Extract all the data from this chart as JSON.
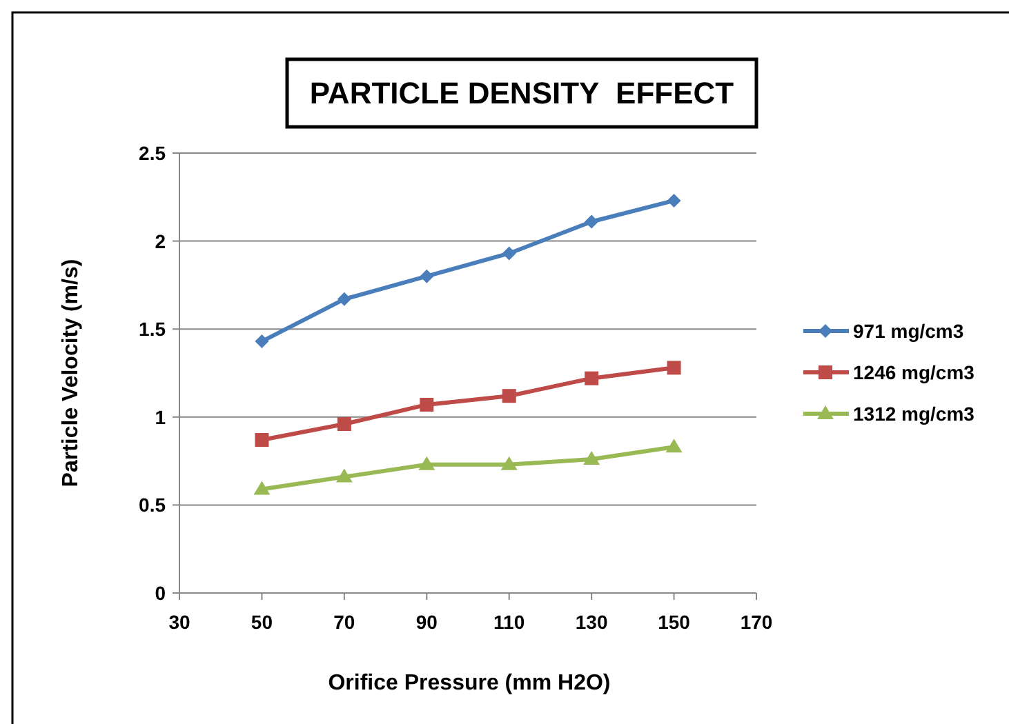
{
  "chart_data": {
    "type": "line",
    "title": "PARTICLE DENSITY  EFFECT",
    "xlabel": "Orifice Pressure (mm H2O)",
    "ylabel": "Particle Velocity (m/s)",
    "x": [
      50,
      70,
      90,
      110,
      130,
      150
    ],
    "series": [
      {
        "name": "971 mg/cm3",
        "color": "#4a7ebb",
        "marker": "diamond",
        "values": [
          1.43,
          1.67,
          1.8,
          1.93,
          2.11,
          2.23
        ]
      },
      {
        "name": "1246 mg/cm3",
        "color": "#be4b48",
        "marker": "square",
        "values": [
          0.87,
          0.96,
          1.07,
          1.12,
          1.22,
          1.28
        ]
      },
      {
        "name": "1312 mg/cm3",
        "color": "#98b954",
        "marker": "triangle",
        "values": [
          0.59,
          0.66,
          0.73,
          0.73,
          0.76,
          0.83
        ]
      }
    ],
    "xlim": [
      30,
      170
    ],
    "xticks": [
      30,
      50,
      70,
      90,
      110,
      130,
      150,
      170
    ],
    "ylim": [
      0,
      2.5
    ],
    "yticks": [
      0,
      0.5,
      1,
      1.5,
      2,
      2.5
    ],
    "grid": "y",
    "legend": "right",
    "line_style": "solid"
  }
}
